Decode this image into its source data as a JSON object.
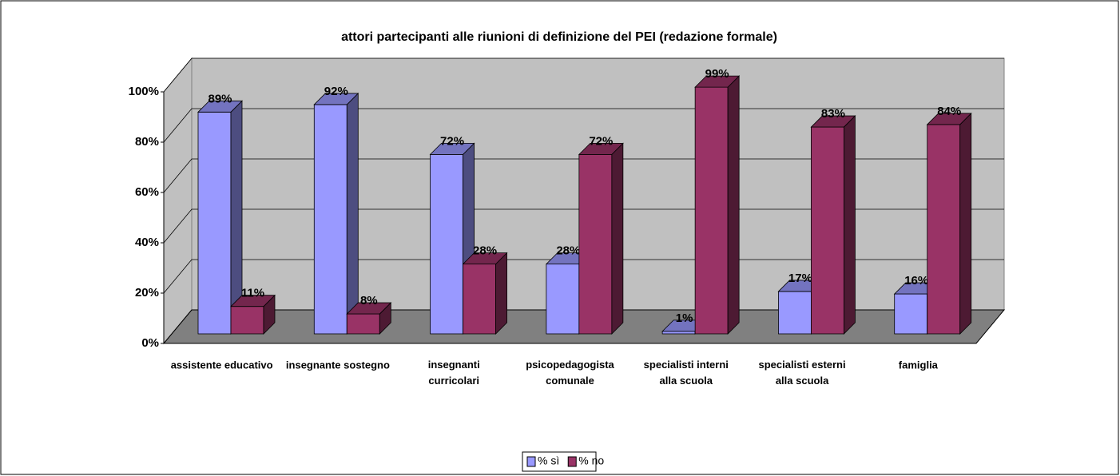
{
  "chart_data": {
    "type": "bar3d",
    "title": "attori partecipanti alle riunioni di definizione del PEI (redazione formale)",
    "categories": [
      "assistente educativo",
      "insegnante sostegno",
      "insegnanti curricolari",
      "psicopedagogista comunale",
      "specialisti interni alla scuola",
      "specialisti esterni alla scuola",
      "famiglia"
    ],
    "series": [
      {
        "name": "% sì",
        "color": "#9999ff",
        "values": [
          89,
          92,
          72,
          28,
          1,
          17,
          16
        ],
        "value_labels": [
          "89%",
          "92%",
          "72%",
          "28%",
          "1%",
          "17%",
          "16%"
        ]
      },
      {
        "name": "% no",
        "color": "#993366",
        "values": [
          11,
          8,
          28,
          72,
          99,
          83,
          84
        ],
        "value_labels": [
          "11%",
          "8%",
          "28%",
          "72%",
          "99%",
          "83%",
          "84%"
        ]
      }
    ],
    "ylim": [
      0,
      100
    ],
    "yticks": [
      {
        "value": 0,
        "label": "0%"
      },
      {
        "value": 20,
        "label": "20%"
      },
      {
        "value": 40,
        "label": "40%"
      },
      {
        "value": 60,
        "label": "60%"
      },
      {
        "value": 80,
        "label": "80%"
      },
      {
        "value": 100,
        "label": "100%"
      }
    ],
    "grid": true,
    "legend": "bottom"
  }
}
